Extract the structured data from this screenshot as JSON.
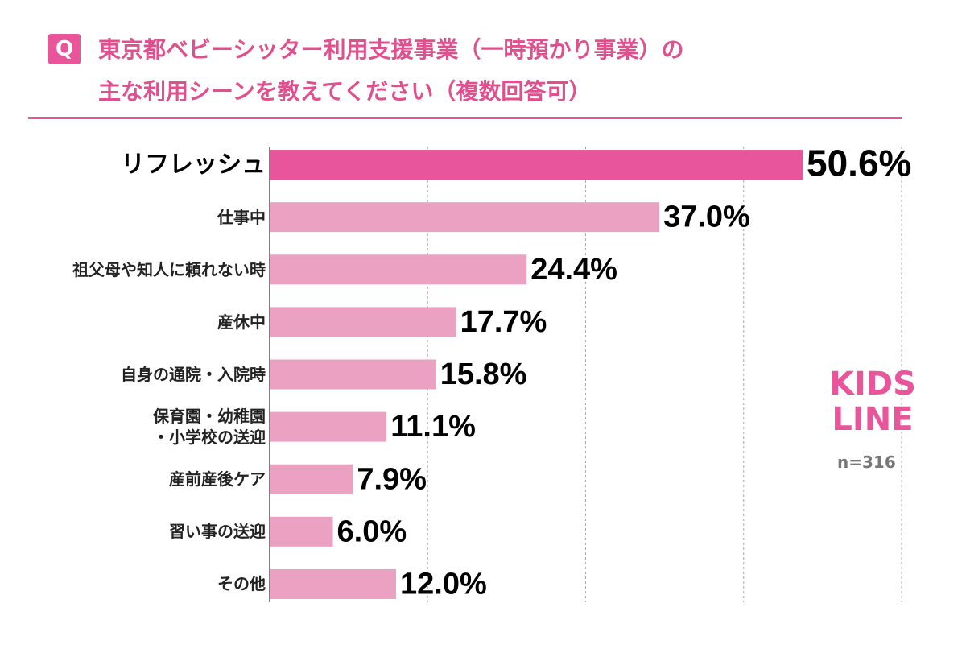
{
  "header": {
    "icon": "Q",
    "title_lines": [
      "東京都ベビーシッター利用支援事業（一時預かり事業）の",
      "主な利用シーンを教えてください（複数回答可）"
    ]
  },
  "chart_data": {
    "type": "bar",
    "orientation": "horizontal",
    "categories": [
      "リフレッシュ",
      "仕事中",
      "祖父母や知人に頼れない時",
      "産休中",
      "自身の通院・入院時",
      "保育園・幼稚園\n・小学校の送迎",
      "産前産後ケア",
      "習い事の送迎",
      "その他"
    ],
    "values": [
      50.6,
      37.0,
      24.4,
      17.7,
      15.8,
      11.1,
      7.9,
      6.0,
      12.0
    ],
    "value_labels": [
      "50.6%",
      "37.0%",
      "24.4%",
      "17.7%",
      "15.8%",
      "11.1%",
      "7.9%",
      "6.0%",
      "12.0%"
    ],
    "colors": [
      "#e8559a",
      "#eba2c2",
      "#eba2c2",
      "#eba2c2",
      "#eba2c2",
      "#eba2c2",
      "#eba2c2",
      "#eba2c2",
      "#eba2c2"
    ],
    "xlim": [
      0,
      60
    ],
    "xticks": [
      15,
      30,
      45,
      60
    ],
    "grid": true
  },
  "logo_lines": [
    "KIDS",
    "LINE"
  ],
  "note": "n=316"
}
